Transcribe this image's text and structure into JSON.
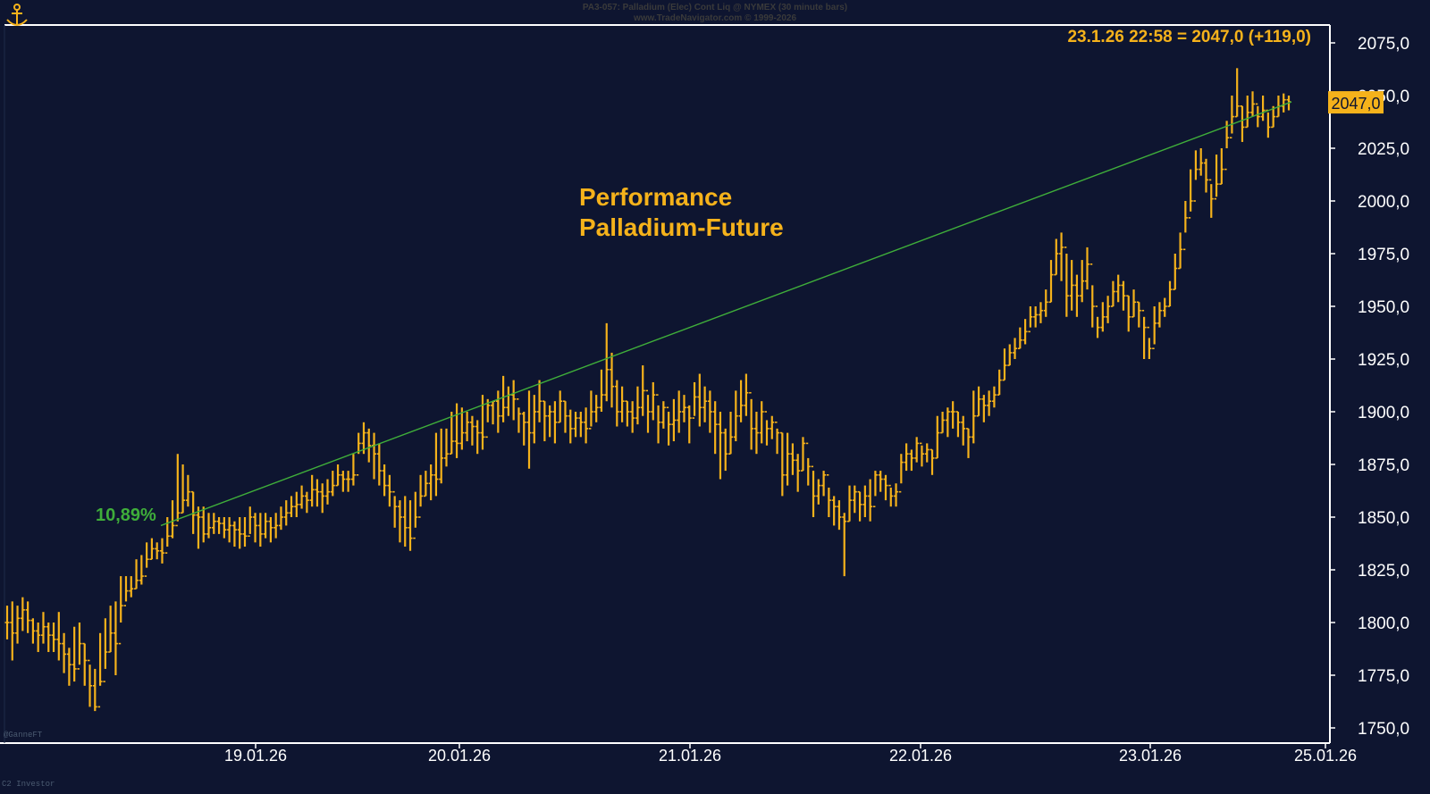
{
  "header": {
    "line1": "PA3-057: Palladium (Elec) Cont Liq @ NYMEX (30 minute bars)",
    "line2": "www.TradeNavigator.com © 1999-2026"
  },
  "watermark": "@GanneFT",
  "footer_left": "C2 Investor",
  "colors": {
    "background": "#0e1530",
    "bars": "#f5b21b",
    "trendline": "#3fae3a",
    "axis": "#ffffff",
    "label_text": "#f5b21b",
    "percent_text": "#3fae3a"
  },
  "chart_data": {
    "type": "ohlc-bar",
    "title": "Performance Palladium-Future",
    "title_lines": [
      "Performance",
      "Palladium-Future"
    ],
    "last_price_annotation": "23.1.26 22:58 = 2047,0 (+119,0)",
    "last_price_tag": "2047,0",
    "trendline_label": "10,89%",
    "trendline": {
      "start": {
        "date": "18.01.26 23:30",
        "value": 1846
      },
      "end": {
        "date": "23.01.26 22:58",
        "value": 2047
      }
    },
    "y_axis": {
      "ylim": [
        1745,
        2082
      ],
      "ticks": [
        2075,
        2050,
        2025,
        2000,
        1975,
        1950,
        1925,
        1900,
        1875,
        1850,
        1825,
        1800,
        1775,
        1750
      ],
      "tick_labels": [
        "2075,0",
        "2050,0",
        "2025,0",
        "2000,0",
        "1975,0",
        "1950,0",
        "1925,0",
        "1900,0",
        "1875,0",
        "1850,0",
        "1825,0",
        "1800,0",
        "1775,0",
        "1750,0"
      ],
      "position": "right"
    },
    "x_axis": {
      "tick_labels": [
        "19.01.26",
        "20.01.26",
        "21.01.26",
        "22.01.26",
        "23.01.26",
        "25.01.26"
      ]
    },
    "series": [
      {
        "values_close": [
          1800,
          1795,
          1802,
          1806,
          1801,
          1796,
          1794,
          1798,
          1794,
          1792,
          1790,
          1785,
          1780,
          1778,
          1790,
          1782,
          1770,
          1760,
          1772,
          1786,
          1795,
          1790,
          1808,
          1815,
          1816,
          1820,
          1822,
          1830,
          1835,
          1834,
          1833,
          1841,
          1846,
          1852,
          1858,
          1862,
          1851,
          1850,
          1842,
          1845,
          1848,
          1847,
          1844,
          1846,
          1844,
          1842,
          1841,
          1850,
          1846,
          1842,
          1848,
          1845,
          1846,
          1850,
          1852,
          1855,
          1856,
          1860,
          1858,
          1863,
          1862,
          1860,
          1862,
          1865,
          1870,
          1868,
          1868,
          1870,
          1885,
          1890,
          1884,
          1880,
          1872,
          1865,
          1862,
          1855,
          1850,
          1845,
          1840,
          1850,
          1860,
          1866,
          1870,
          1868,
          1878,
          1880,
          1886,
          1885,
          1890,
          1895,
          1893,
          1890,
          1888,
          1903,
          1905,
          1898,
          1902,
          1908,
          1906,
          1899,
          1895,
          1890,
          1900,
          1905,
          1898,
          1900,
          1895,
          1905,
          1898,
          1892,
          1897,
          1895,
          1892,
          1900,
          1902,
          1908,
          1920,
          1912,
          1900,
          1905,
          1900,
          1897,
          1902,
          1910,
          1900,
          1908,
          1895,
          1902,
          1894,
          1896,
          1900,
          1902,
          1897,
          1907,
          1902,
          1905,
          1900,
          1894,
          1890,
          1880,
          1888,
          1898,
          1903,
          1909,
          1892,
          1890,
          1900,
          1892,
          1895,
          1890,
          1870,
          1880,
          1877,
          1872,
          1885,
          1874,
          1860,
          1865,
          1870,
          1858,
          1855,
          1850,
          1848,
          1858,
          1862,
          1856,
          1860,
          1855,
          1870,
          1868,
          1865,
          1860,
          1862,
          1876,
          1880,
          1878,
          1885,
          1880,
          1882,
          1878,
          1890,
          1896,
          1900,
          1900,
          1895,
          1892,
          1888,
          1898,
          1906,
          1903,
          1905,
          1908,
          1915,
          1922,
          1928,
          1930,
          1934,
          1938,
          1945,
          1946,
          1948,
          1952,
          1965,
          1975,
          1978,
          1955,
          1960,
          1955,
          1962,
          1970,
          1950,
          1940,
          1945,
          1950,
          1957,
          1960,
          1955,
          1945,
          1952,
          1948,
          1940,
          1930,
          1942,
          1948,
          1950,
          1958,
          1968,
          1977,
          1992,
          2000,
          2015,
          2018,
          2010,
          2001,
          2008,
          2015,
          2030,
          2040,
          2045,
          2035,
          2042,
          2046,
          2040,
          2043,
          2035,
          2040,
          2045,
          2048,
          2047
        ],
        "values_high": [
          1808,
          1810,
          1808,
          1812,
          1810,
          1802,
          1800,
          1805,
          1800,
          1800,
          1805,
          1795,
          1788,
          1798,
          1800,
          1790,
          1780,
          1778,
          1795,
          1802,
          1808,
          1810,
          1822,
          1822,
          1822,
          1830,
          1832,
          1838,
          1840,
          1838,
          1840,
          1850,
          1858,
          1880,
          1875,
          1870,
          1862,
          1855,
          1855,
          1852,
          1852,
          1850,
          1850,
          1850,
          1848,
          1850,
          1850,
          1855,
          1852,
          1852,
          1852,
          1850,
          1852,
          1855,
          1858,
          1860,
          1862,
          1865,
          1862,
          1870,
          1868,
          1866,
          1868,
          1872,
          1875,
          1872,
          1872,
          1880,
          1890,
          1895,
          1892,
          1890,
          1885,
          1875,
          1870,
          1860,
          1858,
          1860,
          1858,
          1862,
          1870,
          1872,
          1875,
          1890,
          1892,
          1892,
          1900,
          1904,
          1902,
          1900,
          1898,
          1896,
          1908,
          1906,
          1905,
          1910,
          1917,
          1912,
          1915,
          1902,
          1900,
          1910,
          1908,
          1915,
          1905,
          1903,
          1905,
          1910,
          1905,
          1901,
          1900,
          1900,
          1902,
          1910,
          1908,
          1920,
          1942,
          1928,
          1915,
          1912,
          1905,
          1905,
          1912,
          1922,
          1908,
          1914,
          1903,
          1905,
          1900,
          1906,
          1910,
          1908,
          1903,
          1914,
          1918,
          1912,
          1910,
          1905,
          1900,
          1892,
          1900,
          1910,
          1915,
          1918,
          1906,
          1900,
          1905,
          1896,
          1898,
          1892,
          1890,
          1890,
          1885,
          1880,
          1888,
          1878,
          1872,
          1868,
          1872,
          1864,
          1860,
          1858,
          1852,
          1865,
          1865,
          1862,
          1865,
          1868,
          1872,
          1872,
          1870,
          1864,
          1866,
          1880,
          1885,
          1882,
          1888,
          1884,
          1885,
          1882,
          1898,
          1900,
          1902,
          1905,
          1900,
          1898,
          1892,
          1910,
          1912,
          1908,
          1910,
          1912,
          1920,
          1930,
          1932,
          1935,
          1940,
          1944,
          1950,
          1950,
          1952,
          1958,
          1972,
          1982,
          1985,
          1975,
          1972,
          1965,
          1972,
          1978,
          1960,
          1945,
          1952,
          1955,
          1962,
          1965,
          1962,
          1955,
          1958,
          1952,
          1945,
          1935,
          1950,
          1952,
          1954,
          1962,
          1975,
          1985,
          2000,
          2015,
          2024,
          2025,
          2020,
          2008,
          2022,
          2025,
          2038,
          2050,
          2063,
          2045,
          2050,
          2052,
          2045,
          2050,
          2042,
          2045,
          2050,
          2051,
          2050
        ],
        "values_low": [
          1792,
          1782,
          1790,
          1796,
          1795,
          1790,
          1786,
          1790,
          1786,
          1786,
          1782,
          1776,
          1770,
          1772,
          1780,
          1770,
          1760,
          1758,
          1770,
          1778,
          1786,
          1775,
          1800,
          1810,
          1812,
          1816,
          1818,
          1826,
          1830,
          1830,
          1828,
          1836,
          1840,
          1848,
          1852,
          1855,
          1842,
          1835,
          1838,
          1840,
          1842,
          1842,
          1840,
          1838,
          1836,
          1835,
          1836,
          1842,
          1838,
          1836,
          1840,
          1838,
          1840,
          1844,
          1846,
          1850,
          1850,
          1854,
          1852,
          1855,
          1855,
          1852,
          1856,
          1860,
          1865,
          1862,
          1862,
          1865,
          1880,
          1880,
          1876,
          1868,
          1865,
          1860,
          1855,
          1845,
          1838,
          1836,
          1834,
          1845,
          1855,
          1860,
          1858,
          1860,
          1866,
          1874,
          1880,
          1878,
          1882,
          1886,
          1884,
          1880,
          1882,
          1895,
          1894,
          1890,
          1895,
          1898,
          1896,
          1890,
          1884,
          1873,
          1885,
          1895,
          1886,
          1888,
          1885,
          1895,
          1890,
          1885,
          1888,
          1888,
          1885,
          1893,
          1895,
          1900,
          1905,
          1902,
          1893,
          1895,
          1893,
          1890,
          1894,
          1898,
          1890,
          1896,
          1885,
          1892,
          1884,
          1886,
          1890,
          1895,
          1885,
          1898,
          1893,
          1895,
          1890,
          1880,
          1868,
          1872,
          1880,
          1886,
          1895,
          1898,
          1882,
          1880,
          1885,
          1884,
          1887,
          1880,
          1860,
          1865,
          1870,
          1862,
          1872,
          1865,
          1850,
          1856,
          1860,
          1850,
          1846,
          1844,
          1822,
          1848,
          1852,
          1848,
          1850,
          1848,
          1860,
          1862,
          1858,
          1855,
          1855,
          1866,
          1872,
          1872,
          1876,
          1874,
          1876,
          1870,
          1878,
          1890,
          1888,
          1892,
          1888,
          1884,
          1878,
          1885,
          1898,
          1895,
          1898,
          1902,
          1908,
          1915,
          1922,
          1925,
          1930,
          1932,
          1940,
          1940,
          1942,
          1945,
          1952,
          1965,
          1962,
          1945,
          1948,
          1945,
          1952,
          1958,
          1940,
          1935,
          1938,
          1942,
          1950,
          1952,
          1948,
          1938,
          1945,
          1940,
          1925,
          1925,
          1932,
          1940,
          1945,
          1950,
          1958,
          1968,
          1985,
          1995,
          2010,
          2012,
          2004,
          1992,
          2002,
          2008,
          2025,
          2032,
          2040,
          2028,
          2035,
          2040,
          2035,
          2038,
          2030,
          2035,
          2040,
          2042,
          2043
        ]
      }
    ],
    "grid": false,
    "legend": "none"
  }
}
